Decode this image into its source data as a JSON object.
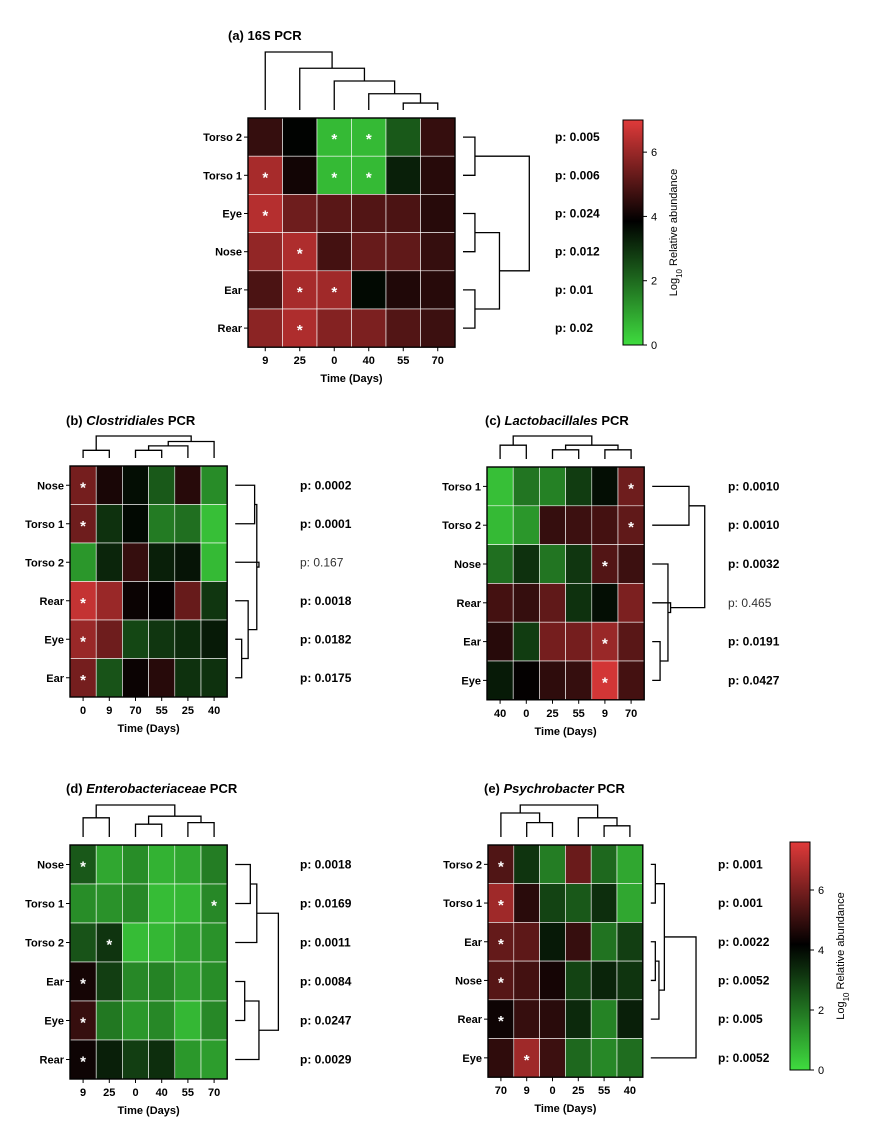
{
  "chart_data": [
    {
      "type": "heatmap",
      "panel": "a",
      "title_prefix": "(a) ",
      "title_italic": "",
      "title_suffix": "16S PCR",
      "xlabel": "Time (Days)",
      "columns": [
        "9",
        "25",
        "0",
        "40",
        "55",
        "70"
      ],
      "rows": [
        "Torso 2",
        "Torso 1",
        "Eye",
        "Nose",
        "Ear",
        "Rear"
      ],
      "values": [
        [
          4.6,
          3.8,
          0.6,
          0.6,
          2.3,
          4.6
        ],
        [
          6.2,
          4.1,
          0.6,
          0.6,
          3.3,
          4.4
        ],
        [
          6.4,
          5.4,
          5.1,
          5.0,
          4.9,
          4.4
        ],
        [
          5.9,
          6.3,
          4.8,
          5.3,
          5.2,
          4.6
        ],
        [
          4.9,
          6.2,
          6.1,
          3.7,
          4.3,
          4.4
        ],
        [
          5.8,
          6.3,
          5.7,
          5.6,
          5.0,
          4.7
        ]
      ],
      "significant": [
        [
          false,
          false,
          true,
          true,
          false,
          false
        ],
        [
          true,
          false,
          true,
          true,
          false,
          false
        ],
        [
          true,
          false,
          false,
          false,
          false,
          false
        ],
        [
          false,
          true,
          false,
          false,
          false,
          false
        ],
        [
          false,
          true,
          true,
          false,
          false,
          false
        ],
        [
          false,
          true,
          false,
          false,
          false,
          false
        ]
      ],
      "p_values": [
        {
          "text": "p: 0.005",
          "significant": true
        },
        {
          "text": "p: 0.006",
          "significant": true
        },
        {
          "text": "p: 0.024",
          "significant": true
        },
        {
          "text": "p: 0.012",
          "significant": true
        },
        {
          "text": "p: 0.01",
          "significant": true
        },
        {
          "text": "p: 0.02",
          "significant": true
        }
      ]
    },
    {
      "type": "heatmap",
      "panel": "b",
      "title_prefix": "(b) ",
      "title_italic": "Clostridiales",
      "title_suffix": " PCR",
      "xlabel": "Time (Days)",
      "columns": [
        "0",
        "9",
        "70",
        "55",
        "25",
        "40"
      ],
      "rows": [
        "Nose",
        "Torso 1",
        "Torso 2",
        "Rear",
        "Eye",
        "Ear"
      ],
      "values": [
        [
          5.5,
          4.2,
          3.6,
          2.3,
          4.4,
          1.4
        ],
        [
          5.4,
          3.0,
          3.7,
          1.7,
          1.9,
          0.5
        ],
        [
          1.2,
          3.2,
          4.6,
          3.3,
          3.5,
          0.6
        ],
        [
          6.6,
          6.0,
          4.0,
          3.9,
          5.3,
          2.9
        ],
        [
          6.0,
          5.4,
          2.6,
          2.9,
          3.1,
          3.4
        ],
        [
          5.5,
          2.4,
          4.0,
          4.4,
          3.0,
          3.0
        ]
      ],
      "significant": [
        [
          true,
          false,
          false,
          false,
          false,
          false
        ],
        [
          true,
          false,
          false,
          false,
          false,
          false
        ],
        [
          false,
          false,
          false,
          false,
          false,
          false
        ],
        [
          true,
          false,
          false,
          false,
          false,
          false
        ],
        [
          true,
          false,
          false,
          false,
          false,
          false
        ],
        [
          true,
          false,
          false,
          false,
          false,
          false
        ]
      ],
      "p_values": [
        {
          "text": "p: 0.0002",
          "significant": true
        },
        {
          "text": "p: 0.0001",
          "significant": true
        },
        {
          "text": "p: 0.167",
          "significant": false
        },
        {
          "text": "p: 0.0018",
          "significant": true
        },
        {
          "text": "p: 0.0182",
          "significant": true
        },
        {
          "text": "p: 0.0175",
          "significant": true
        }
      ]
    },
    {
      "type": "heatmap",
      "panel": "c",
      "title_prefix": "(c) ",
      "title_italic": "Lactobacillales",
      "title_suffix": " PCR",
      "xlabel": "Time (Days)",
      "columns": [
        "40",
        "0",
        "25",
        "55",
        "9",
        "70"
      ],
      "rows": [
        "Torso 1",
        "Torso 2",
        "Nose",
        "Rear",
        "Ear",
        "Eye"
      ],
      "values": [
        [
          0.5,
          1.8,
          1.6,
          2.8,
          3.6,
          5.4
        ],
        [
          0.6,
          1.2,
          4.6,
          4.7,
          4.8,
          5.2
        ],
        [
          1.9,
          3.0,
          1.8,
          2.9,
          5.0,
          4.7
        ],
        [
          4.8,
          4.6,
          5.2,
          3.0,
          3.6,
          5.6
        ],
        [
          4.4,
          2.8,
          5.5,
          5.5,
          6.0,
          5.1
        ],
        [
          3.4,
          3.9,
          4.5,
          4.6,
          6.8,
          4.8
        ]
      ],
      "significant": [
        [
          false,
          false,
          false,
          false,
          false,
          true
        ],
        [
          false,
          false,
          false,
          false,
          false,
          true
        ],
        [
          false,
          false,
          false,
          false,
          true,
          false
        ],
        [
          false,
          false,
          false,
          false,
          false,
          false
        ],
        [
          false,
          false,
          false,
          false,
          true,
          false
        ],
        [
          false,
          false,
          false,
          false,
          true,
          false
        ]
      ],
      "p_values": [
        {
          "text": "p: 0.0010",
          "significant": true
        },
        {
          "text": "p: 0.0010",
          "significant": true
        },
        {
          "text": "p: 0.0032",
          "significant": true
        },
        {
          "text": "p: 0.465",
          "significant": false
        },
        {
          "text": "p: 0.0191",
          "significant": true
        },
        {
          "text": "p: 0.0427",
          "significant": true
        }
      ]
    },
    {
      "type": "heatmap",
      "panel": "d",
      "title_prefix": "(d) ",
      "title_italic": "Enterobacteriaceae",
      "title_suffix": " PCR",
      "xlabel": "Time (Days)",
      "columns": [
        "9",
        "25",
        "0",
        "40",
        "55",
        "70"
      ],
      "rows": [
        "Nose",
        "Torso 1",
        "Torso 2",
        "Ear",
        "Eye",
        "Rear"
      ],
      "values": [
        [
          2.5,
          1.0,
          1.5,
          0.8,
          1.0,
          1.8
        ],
        [
          1.5,
          1.4,
          1.6,
          0.6,
          0.7,
          1.6
        ],
        [
          2.6,
          3.2,
          0.6,
          0.7,
          1.1,
          1.4
        ],
        [
          4.5,
          3.0,
          1.6,
          1.7,
          1.2,
          1.5
        ],
        [
          5.0,
          1.9,
          1.3,
          1.6,
          0.7,
          1.6
        ],
        [
          4.4,
          3.6,
          3.0,
          3.3,
          1.3,
          1.2
        ]
      ],
      "significant": [
        [
          true,
          false,
          false,
          false,
          false,
          false
        ],
        [
          false,
          false,
          false,
          false,
          false,
          true
        ],
        [
          false,
          true,
          false,
          false,
          false,
          false
        ],
        [
          true,
          false,
          false,
          false,
          false,
          false
        ],
        [
          true,
          false,
          false,
          false,
          false,
          false
        ],
        [
          true,
          false,
          false,
          false,
          false,
          false
        ]
      ],
      "p_values": [
        {
          "text": "p: 0.0018",
          "significant": true
        },
        {
          "text": "p: 0.0169",
          "significant": true
        },
        {
          "text": "p: 0.0011",
          "significant": true
        },
        {
          "text": "p: 0.0084",
          "significant": true
        },
        {
          "text": "p: 0.0247",
          "significant": true
        },
        {
          "text": "p: 0.0029",
          "significant": true
        }
      ]
    },
    {
      "type": "heatmap",
      "panel": "e",
      "title_prefix": "(e) ",
      "title_italic": "Psychrobacter",
      "title_suffix": " PCR",
      "xlabel": "Time (Days)",
      "columns": [
        "70",
        "9",
        "0",
        "25",
        "55",
        "40"
      ],
      "rows": [
        "Torso 2",
        "Torso 1",
        "Ear",
        "Nose",
        "Rear",
        "Eye"
      ],
      "values": [
        [
          5.4,
          3.2,
          1.8,
          5.8,
          2.2,
          1.0
        ],
        [
          6.6,
          4.8,
          2.9,
          2.5,
          3.3,
          1.0
        ],
        [
          5.7,
          5.6,
          3.7,
          5.0,
          2.0,
          3.0
        ],
        [
          5.5,
          5.2,
          4.5,
          2.9,
          3.5,
          3.2
        ],
        [
          4.4,
          5.0,
          4.8,
          3.4,
          1.7,
          3.6
        ],
        [
          4.9,
          6.6,
          5.1,
          2.2,
          1.6,
          2.1
        ]
      ],
      "significant": [
        [
          true,
          false,
          false,
          false,
          false,
          false
        ],
        [
          true,
          false,
          false,
          false,
          false,
          false
        ],
        [
          true,
          false,
          false,
          false,
          false,
          false
        ],
        [
          true,
          false,
          false,
          false,
          false,
          false
        ],
        [
          true,
          false,
          false,
          false,
          false,
          false
        ],
        [
          false,
          true,
          false,
          false,
          false,
          false
        ]
      ],
      "p_values": [
        {
          "text": "p: 0.001",
          "significant": true
        },
        {
          "text": "p: 0.001",
          "significant": true
        },
        {
          "text": "p: 0.0022",
          "significant": true
        },
        {
          "text": "p: 0.0052",
          "significant": true
        },
        {
          "text": "p: 0.005",
          "significant": true
        },
        {
          "text": "p: 0.0052",
          "significant": true
        }
      ]
    }
  ],
  "colorbars": [
    {
      "label_prefix": "Log",
      "label_sub": "10",
      "label_suffix": " Relative abundance",
      "ticks": [
        0,
        2,
        4,
        6
      ],
      "range": [
        0,
        7
      ]
    },
    {
      "label_prefix": "Log",
      "label_sub": "10",
      "label_suffix": " Relative abundance",
      "ticks": [
        0,
        2,
        4,
        6
      ],
      "range": [
        0,
        7.6
      ]
    }
  ],
  "colors": {
    "low": "#3fdc3f",
    "mid": "#000000",
    "high": "#e03a3a"
  }
}
